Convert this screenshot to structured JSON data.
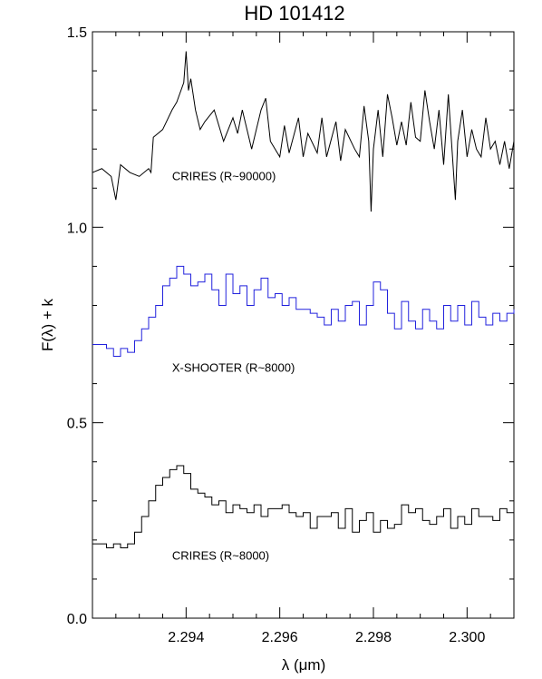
{
  "chart_data": {
    "type": "line",
    "title": "HD 101412",
    "xlabel": "λ (μm)",
    "ylabel": "F(λ) + k",
    "xlim": [
      2.292,
      2.301
    ],
    "ylim": [
      0.0,
      1.5
    ],
    "xticks": [
      {
        "value": 2.294,
        "label": "2.294"
      },
      {
        "value": 2.296,
        "label": "2.296"
      },
      {
        "value": 2.298,
        "label": "2.298"
      },
      {
        "value": 2.3,
        "label": "2.300"
      }
    ],
    "yticks": [
      {
        "value": 0.0,
        "label": "0.0"
      },
      {
        "value": 0.5,
        "label": "0.5"
      },
      {
        "value": 1.0,
        "label": "1.0"
      },
      {
        "value": 1.5,
        "label": "1.5"
      }
    ],
    "grid": false,
    "series": [
      {
        "name": "CRIRES (R~90000)",
        "color": "#000000",
        "step": false,
        "label_x": 2.2937,
        "label_y": 1.12,
        "x": [
          2.292,
          2.2922,
          2.2924,
          2.2925,
          2.2926,
          2.2928,
          2.293,
          2.2932,
          2.29325,
          2.2933,
          2.2935,
          2.2937,
          2.2938,
          2.29395,
          2.294,
          2.29405,
          2.2941,
          2.2942,
          2.2943,
          2.2944,
          2.2946,
          2.2948,
          2.295,
          2.2951,
          2.2952,
          2.2954,
          2.2955,
          2.2956,
          2.2957,
          2.2958,
          2.296,
          2.2961,
          2.2962,
          2.2964,
          2.2965,
          2.2966,
          2.2968,
          2.2969,
          2.297,
          2.2972,
          2.2973,
          2.2974,
          2.2976,
          2.2977,
          2.2978,
          2.2979,
          2.29795,
          2.298,
          2.2981,
          2.2982,
          2.2983,
          2.2984,
          2.2985,
          2.2986,
          2.2987,
          2.2988,
          2.2989,
          2.299,
          2.2991,
          2.2992,
          2.2993,
          2.2994,
          2.2995,
          2.2996,
          2.29975,
          2.2998,
          2.2999,
          2.3,
          2.3001,
          2.3002,
          2.3003,
          2.3004,
          2.3005,
          2.3006,
          2.3007,
          2.3008,
          2.3009,
          2.301
        ],
        "y": [
          1.14,
          1.15,
          1.13,
          1.07,
          1.16,
          1.14,
          1.13,
          1.15,
          1.14,
          1.23,
          1.25,
          1.3,
          1.32,
          1.37,
          1.45,
          1.35,
          1.38,
          1.3,
          1.25,
          1.27,
          1.3,
          1.22,
          1.28,
          1.24,
          1.3,
          1.2,
          1.25,
          1.3,
          1.33,
          1.22,
          1.18,
          1.26,
          1.19,
          1.28,
          1.18,
          1.24,
          1.19,
          1.28,
          1.18,
          1.27,
          1.17,
          1.25,
          1.2,
          1.18,
          1.31,
          1.22,
          1.04,
          1.2,
          1.3,
          1.18,
          1.34,
          1.28,
          1.21,
          1.27,
          1.21,
          1.32,
          1.23,
          1.22,
          1.35,
          1.27,
          1.2,
          1.3,
          1.16,
          1.34,
          1.07,
          1.22,
          1.3,
          1.18,
          1.25,
          1.2,
          1.18,
          1.28,
          1.2,
          1.22,
          1.16,
          1.22,
          1.15,
          1.22
        ]
      },
      {
        "name": "X-SHOOTER (R~8000)",
        "color": "#2222dd",
        "step": true,
        "label_x": 2.2937,
        "label_y": 0.63,
        "x": [
          2.292,
          2.29215,
          2.2923,
          2.29245,
          2.2926,
          2.29275,
          2.2929,
          2.29305,
          2.2932,
          2.29335,
          2.2935,
          2.29365,
          2.2938,
          2.29395,
          2.2941,
          2.29425,
          2.2944,
          2.29455,
          2.2947,
          2.29485,
          2.295,
          2.29515,
          2.2953,
          2.29545,
          2.2956,
          2.29575,
          2.2959,
          2.29605,
          2.2962,
          2.29635,
          2.2965,
          2.29665,
          2.2968,
          2.29695,
          2.2971,
          2.29725,
          2.2974,
          2.29755,
          2.2977,
          2.29785,
          2.298,
          2.29815,
          2.2983,
          2.29845,
          2.2986,
          2.29875,
          2.2989,
          2.29905,
          2.2992,
          2.29935,
          2.2995,
          2.29965,
          2.2998,
          2.29995,
          2.3001,
          2.30025,
          2.3004,
          2.30055,
          2.3007,
          2.30085,
          2.301
        ],
        "y": [
          0.7,
          0.7,
          0.69,
          0.67,
          0.69,
          0.68,
          0.71,
          0.74,
          0.77,
          0.8,
          0.85,
          0.87,
          0.9,
          0.88,
          0.85,
          0.86,
          0.88,
          0.84,
          0.8,
          0.88,
          0.83,
          0.85,
          0.8,
          0.84,
          0.87,
          0.82,
          0.83,
          0.8,
          0.82,
          0.79,
          0.79,
          0.78,
          0.77,
          0.75,
          0.79,
          0.76,
          0.8,
          0.81,
          0.75,
          0.8,
          0.86,
          0.84,
          0.78,
          0.74,
          0.81,
          0.76,
          0.74,
          0.79,
          0.76,
          0.74,
          0.8,
          0.76,
          0.8,
          0.75,
          0.81,
          0.77,
          0.75,
          0.78,
          0.76,
          0.78,
          0.79
        ]
      },
      {
        "name": "CRIRES (R~8000)",
        "color": "#000000",
        "step": true,
        "label_x": 2.2937,
        "label_y": 0.15,
        "x": [
          2.292,
          2.29215,
          2.2923,
          2.29245,
          2.2926,
          2.29275,
          2.2929,
          2.29305,
          2.2932,
          2.29335,
          2.2935,
          2.29365,
          2.2938,
          2.29395,
          2.2941,
          2.29425,
          2.2944,
          2.29455,
          2.2947,
          2.29485,
          2.295,
          2.29515,
          2.2953,
          2.29545,
          2.2956,
          2.29575,
          2.2959,
          2.29605,
          2.2962,
          2.29635,
          2.2965,
          2.29665,
          2.2968,
          2.29695,
          2.2971,
          2.29725,
          2.2974,
          2.29755,
          2.2977,
          2.29785,
          2.298,
          2.29815,
          2.2983,
          2.29845,
          2.2986,
          2.29875,
          2.2989,
          2.29905,
          2.2992,
          2.29935,
          2.2995,
          2.29965,
          2.2998,
          2.29995,
          2.3001,
          2.30025,
          2.3004,
          2.30055,
          2.3007,
          2.30085,
          2.301
        ],
        "y": [
          0.19,
          0.19,
          0.18,
          0.19,
          0.18,
          0.19,
          0.22,
          0.26,
          0.3,
          0.34,
          0.36,
          0.38,
          0.39,
          0.37,
          0.33,
          0.32,
          0.31,
          0.29,
          0.3,
          0.27,
          0.29,
          0.28,
          0.27,
          0.29,
          0.26,
          0.28,
          0.28,
          0.29,
          0.27,
          0.26,
          0.27,
          0.23,
          0.26,
          0.26,
          0.27,
          0.23,
          0.28,
          0.22,
          0.25,
          0.27,
          0.22,
          0.25,
          0.23,
          0.24,
          0.29,
          0.27,
          0.28,
          0.25,
          0.24,
          0.26,
          0.28,
          0.23,
          0.26,
          0.24,
          0.28,
          0.26,
          0.26,
          0.25,
          0.28,
          0.27,
          0.33
        ]
      }
    ]
  }
}
